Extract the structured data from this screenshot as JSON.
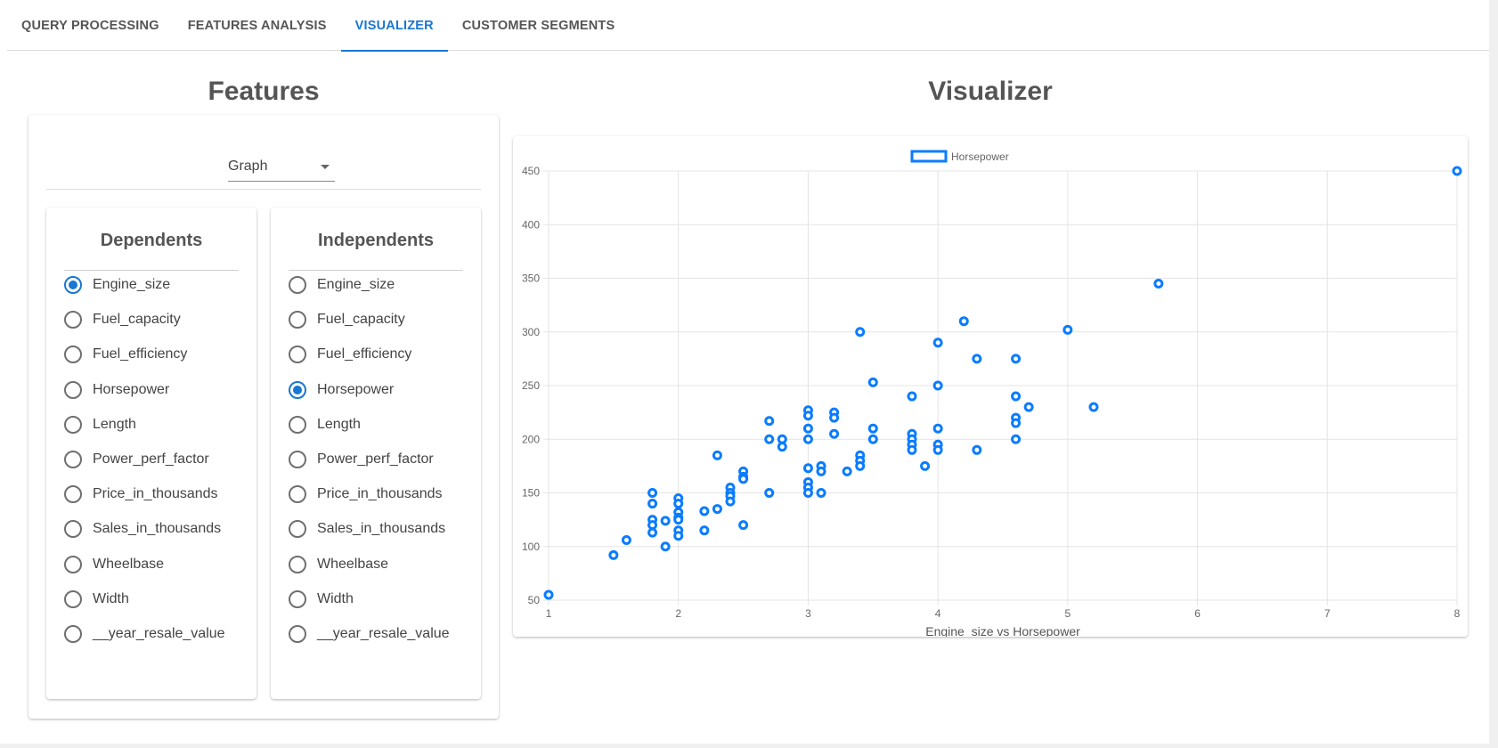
{
  "tabs": [
    {
      "label": "QUERY PROCESSING",
      "active": false
    },
    {
      "label": "FEATURES ANALYSIS",
      "active": false
    },
    {
      "label": "VISUALIZER",
      "active": true
    },
    {
      "label": "CUSTOMER SEGMENTS",
      "active": false
    }
  ],
  "features": {
    "title": "Features",
    "view_select": {
      "value": "Graph"
    },
    "dependents": {
      "title": "Dependents",
      "selected": "Engine_size",
      "options": [
        "Engine_size",
        "Fuel_capacity",
        "Fuel_efficiency",
        "Horsepower",
        "Length",
        "Power_perf_factor",
        "Price_in_thousands",
        "Sales_in_thousands",
        "Wheelbase",
        "Width",
        "__year_resale_value"
      ]
    },
    "independents": {
      "title": "Independents",
      "selected": "Horsepower",
      "options": [
        "Engine_size",
        "Fuel_capacity",
        "Fuel_efficiency",
        "Horsepower",
        "Length",
        "Power_perf_factor",
        "Price_in_thousands",
        "Sales_in_thousands",
        "Wheelbase",
        "Width",
        "__year_resale_value"
      ]
    }
  },
  "visualizer": {
    "title": "Visualizer"
  },
  "colors": {
    "accent": "#1976d2",
    "point": "#0a7cff"
  },
  "chart_data": {
    "type": "scatter",
    "legend": "Horsepower",
    "legend_position": "top-center",
    "xlabel": "Engine_size vs Horsepower",
    "ylabel": "",
    "xlim": [
      1,
      8
    ],
    "ylim": [
      50,
      450
    ],
    "xticks": [
      1,
      2,
      3,
      4,
      5,
      6,
      7,
      8
    ],
    "yticks": [
      50,
      100,
      150,
      200,
      250,
      300,
      350,
      400,
      450
    ],
    "grid": true,
    "series": [
      {
        "name": "Horsepower",
        "points": [
          [
            1.0,
            55
          ],
          [
            1.5,
            92
          ],
          [
            1.6,
            106
          ],
          [
            1.8,
            150
          ],
          [
            1.8,
            140
          ],
          [
            1.8,
            125
          ],
          [
            1.8,
            120
          ],
          [
            1.8,
            113
          ],
          [
            1.9,
            100
          ],
          [
            1.9,
            124
          ],
          [
            2.0,
            145
          ],
          [
            2.0,
            140
          ],
          [
            2.0,
            132
          ],
          [
            2.0,
            127
          ],
          [
            2.0,
            125
          ],
          [
            2.0,
            115
          ],
          [
            2.0,
            110
          ],
          [
            2.2,
            133
          ],
          [
            2.2,
            115
          ],
          [
            2.3,
            185
          ],
          [
            2.3,
            135
          ],
          [
            2.4,
            155
          ],
          [
            2.4,
            150
          ],
          [
            2.4,
            147
          ],
          [
            2.4,
            142
          ],
          [
            2.5,
            170
          ],
          [
            2.5,
            165
          ],
          [
            2.5,
            163
          ],
          [
            2.5,
            120
          ],
          [
            2.7,
            217
          ],
          [
            2.7,
            200
          ],
          [
            2.7,
            150
          ],
          [
            2.8,
            200
          ],
          [
            2.8,
            193
          ],
          [
            3.0,
            227
          ],
          [
            3.0,
            222
          ],
          [
            3.0,
            210
          ],
          [
            3.0,
            200
          ],
          [
            3.0,
            173
          ],
          [
            3.0,
            160
          ],
          [
            3.0,
            155
          ],
          [
            3.0,
            150
          ],
          [
            3.1,
            175
          ],
          [
            3.1,
            170
          ],
          [
            3.1,
            150
          ],
          [
            3.2,
            225
          ],
          [
            3.2,
            220
          ],
          [
            3.2,
            205
          ],
          [
            3.3,
            170
          ],
          [
            3.4,
            300
          ],
          [
            3.4,
            185
          ],
          [
            3.4,
            180
          ],
          [
            3.4,
            175
          ],
          [
            3.5,
            253
          ],
          [
            3.5,
            210
          ],
          [
            3.5,
            200
          ],
          [
            3.8,
            240
          ],
          [
            3.8,
            205
          ],
          [
            3.8,
            200
          ],
          [
            3.8,
            195
          ],
          [
            3.8,
            190
          ],
          [
            3.9,
            175
          ],
          [
            4.0,
            290
          ],
          [
            4.0,
            250
          ],
          [
            4.0,
            210
          ],
          [
            4.0,
            195
          ],
          [
            4.0,
            190
          ],
          [
            4.2,
            310
          ],
          [
            4.3,
            275
          ],
          [
            4.3,
            190
          ],
          [
            4.6,
            275
          ],
          [
            4.6,
            240
          ],
          [
            4.6,
            220
          ],
          [
            4.6,
            215
          ],
          [
            4.6,
            200
          ],
          [
            4.7,
            230
          ],
          [
            5.0,
            302
          ],
          [
            5.2,
            230
          ],
          [
            5.7,
            345
          ],
          [
            8.0,
            450
          ]
        ]
      }
    ]
  }
}
